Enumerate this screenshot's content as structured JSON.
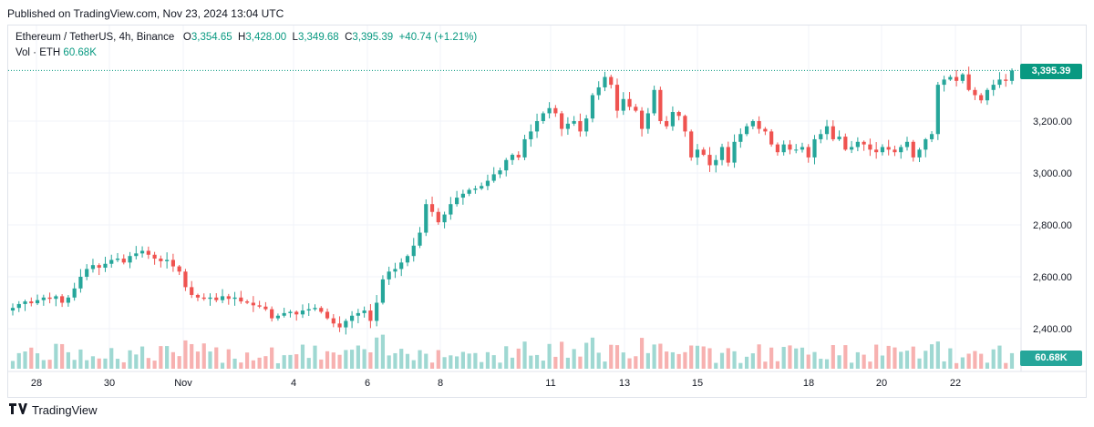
{
  "header": {
    "published": "Published on TradingView.com, Nov 23, 2024 13:04 UTC"
  },
  "legend": {
    "symbol": "Ethereum / TetherUS, 4h, Binance",
    "o_label": "O",
    "o": "3,354.65",
    "h_label": "H",
    "h": "3,428.00",
    "l_label": "L",
    "l": "3,349.68",
    "c_label": "C",
    "c": "3,395.39",
    "change": "+40.74 (+1.21%)",
    "vol_label": "Vol · ETH",
    "vol": "60.68K"
  },
  "colors": {
    "up": "#26a69a",
    "down": "#ef5350",
    "up_vol": "#9fd8d2",
    "down_vol": "#f7b1b0",
    "grid": "#f0f3fa",
    "last": "#089981"
  },
  "price_tag": "3,395.39",
  "volume_tag": "60.68K",
  "footer": {
    "brand": "TradingView"
  },
  "chart_data": {
    "type": "candlestick",
    "title": "Ethereum / TetherUS, 4h, Binance",
    "y_axis": {
      "ticks": [
        "3,200.00",
        "3,000.00",
        "2,800.00",
        "2,600.00",
        "2,400.00"
      ],
      "tick_values": [
        3200,
        3000,
        2800,
        2600,
        2400
      ],
      "side": "right"
    },
    "x_axis": {
      "ticks": [
        "28",
        "30",
        "Nov",
        "4",
        "6",
        "8",
        "11",
        "13",
        "15",
        "18",
        "20",
        "22"
      ]
    },
    "last_price": 3395.39,
    "last_volume": "60.68K",
    "grid": true,
    "candles_note": "approximate OHLC read from chart; 4h bars from Oct 27 to Nov 23 2024",
    "closes": [
      2480,
      2495,
      2505,
      2498,
      2510,
      2520,
      2515,
      2525,
      2500,
      2520,
      2555,
      2600,
      2630,
      2645,
      2635,
      2650,
      2665,
      2670,
      2655,
      2680,
      2690,
      2700,
      2685,
      2670,
      2660,
      2665,
      2640,
      2620,
      2560,
      2530,
      2520,
      2515,
      2520,
      2510,
      2525,
      2515,
      2520,
      2505,
      2500,
      2490,
      2485,
      2475,
      2440,
      2450,
      2460,
      2465,
      2455,
      2470,
      2475,
      2480,
      2465,
      2440,
      2420,
      2405,
      2430,
      2450,
      2460,
      2470,
      2430,
      2500,
      2590,
      2620,
      2630,
      2655,
      2680,
      2720,
      2770,
      2880,
      2850,
      2810,
      2840,
      2880,
      2905,
      2920,
      2935,
      2940,
      2950,
      2970,
      2995,
      3010,
      3050,
      3070,
      3060,
      3130,
      3160,
      3200,
      3230,
      3250,
      3230,
      3170,
      3190,
      3200,
      3160,
      3210,
      3300,
      3330,
      3370,
      3340,
      3240,
      3285,
      3255,
      3240,
      3170,
      3230,
      3320,
      3200,
      3180,
      3235,
      3220,
      3160,
      3060,
      3090,
      3070,
      3030,
      3050,
      3100,
      3040,
      3120,
      3150,
      3180,
      3200,
      3170,
      3160,
      3110,
      3080,
      3110,
      3090,
      3090,
      3100,
      3060,
      3130,
      3150,
      3180,
      3130,
      3140,
      3090,
      3100,
      3120,
      3110,
      3090,
      3080,
      3100,
      3090,
      3080,
      3100,
      3120,
      3060,
      3090,
      3130,
      3150,
      3340,
      3360,
      3370,
      3355,
      3380,
      3320,
      3300,
      3280,
      3320,
      3340,
      3360,
      3355,
      3395
    ]
  }
}
